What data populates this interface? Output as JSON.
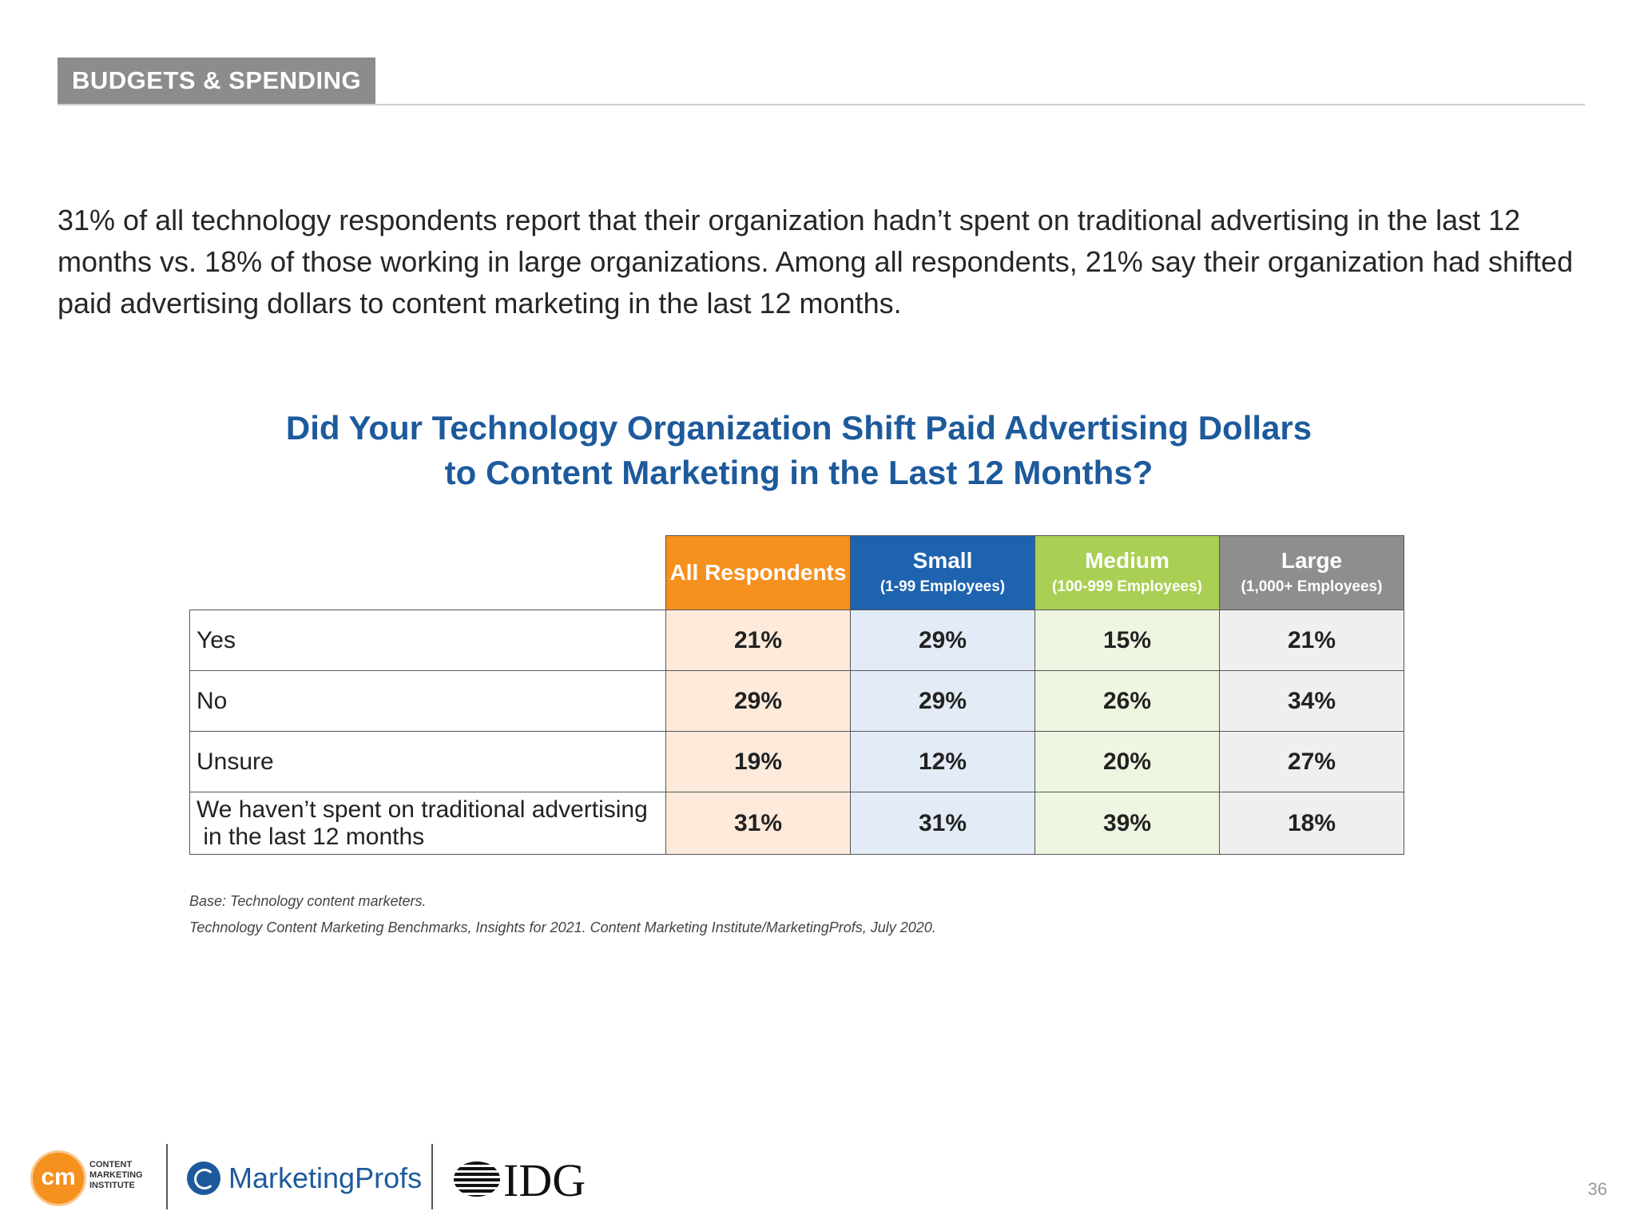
{
  "section": {
    "tag": "BUDGETS & SPENDING"
  },
  "intro": {
    "text": "31% of all technology respondents report that their organization hadn’t spent on traditional advertising in the last 12 months vs. 18% of those working in large organizations. Among all respondents, 21% say their organization had shifted paid advertising dollars to content marketing in the last 12 months."
  },
  "chart_data": {
    "type": "table",
    "title_line1": "Did Your Technology Organization Shift Paid Advertising Dollars",
    "title_line2": "to Content Marketing in the Last 12 Months?",
    "columns": [
      {
        "name": "All Respondents",
        "sub": "",
        "color": "#f6901e"
      },
      {
        "name": "Small",
        "sub": "(1-99 Employees)",
        "color": "#1e63b0"
      },
      {
        "name": "Medium",
        "sub": "(100-999 Employees)",
        "color": "#a9cf54"
      },
      {
        "name": "Large",
        "sub": "(1,000+ Employees)",
        "color": "#8e8e8e"
      }
    ],
    "rows": [
      {
        "label": "Yes",
        "values": [
          "21%",
          "29%",
          "15%",
          "21%"
        ]
      },
      {
        "label": "No",
        "values": [
          "29%",
          "29%",
          "26%",
          "34%"
        ]
      },
      {
        "label": "Unsure",
        "values": [
          "19%",
          "12%",
          "20%",
          "27%"
        ]
      },
      {
        "label_line1": "We haven’t spent on traditional advertising",
        "label_line2": " in the last 12 months",
        "values": [
          "31%",
          "31%",
          "39%",
          "18%"
        ]
      }
    ]
  },
  "footnotes": {
    "base": "Base: Technology content marketers.",
    "source": "Technology Content Marketing Benchmarks, Insights for 2021. Content Marketing Institute/MarketingProfs, July 2020."
  },
  "footer": {
    "cmi_mark": "cm",
    "cmi_line1": "CONTENT",
    "cmi_line2": "MARKETING",
    "cmi_line3": "INSTITUTE",
    "marketingprofs": "MarketingProfs",
    "idg": "IDG",
    "page_number": "36"
  }
}
